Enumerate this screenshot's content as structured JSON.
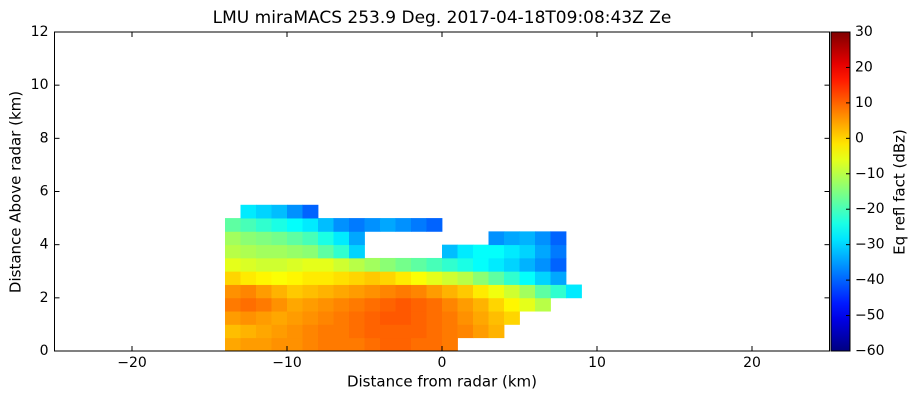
{
  "chart_data": {
    "type": "heatmap",
    "title": "LMU miraMACS 253.9 Deg. 2017-04-18T09:08:43Z  Ze",
    "xlabel": "Distance from radar (km)",
    "ylabel": "Distance Above radar  (km)",
    "xlim": [
      -25,
      25
    ],
    "ylim": [
      0,
      12
    ],
    "xticks": [
      {
        "value": -20,
        "label": "−20"
      },
      {
        "value": -10,
        "label": "−10"
      },
      0,
      10,
      20
    ],
    "yticks": [
      0,
      2,
      4,
      6,
      8,
      10,
      12
    ],
    "colormap": "jet",
    "x": [
      -13.5,
      -12.5,
      -11.5,
      -10.5,
      -9.5,
      -8.5,
      -7.5,
      -6.5,
      -5.5,
      -4.5,
      -3.5,
      -2.5,
      -1.5,
      -0.5,
      0.5,
      1.5,
      2.5,
      3.5,
      4.5,
      5.5,
      6.5,
      7.5,
      8.5,
      9.5
    ],
    "y": [
      0.25,
      0.75,
      1.25,
      1.75,
      2.25,
      2.75,
      3.25,
      3.75,
      4.25,
      4.75,
      5.25
    ],
    "z": [
      [
        4,
        5,
        5,
        6,
        6,
        7,
        8,
        8,
        8,
        9,
        10,
        10,
        9,
        9,
        8,
        null,
        null,
        null,
        null,
        null,
        null,
        null,
        null,
        null
      ],
      [
        2,
        3,
        4,
        5,
        6,
        7,
        8,
        8,
        9,
        10,
        10,
        10,
        10,
        9,
        8,
        7,
        5,
        3,
        null,
        null,
        null,
        null,
        null,
        null
      ],
      [
        5,
        6,
        5,
        4,
        5,
        6,
        7,
        8,
        9,
        10,
        11,
        11,
        10,
        9,
        8,
        6,
        4,
        2,
        0,
        null,
        null,
        null,
        null,
        null
      ],
      [
        8,
        9,
        8,
        6,
        4,
        5,
        6,
        7,
        8,
        9,
        10,
        11,
        10,
        9,
        7,
        5,
        3,
        0,
        -3,
        -6,
        -10,
        null,
        null,
        null
      ],
      [
        6,
        7,
        5,
        3,
        1,
        2,
        3,
        4,
        5,
        6,
        7,
        8,
        7,
        5,
        3,
        1,
        -2,
        -5,
        -8,
        -12,
        -18,
        -22,
        -28,
        null
      ],
      [
        0,
        -2,
        -3,
        -4,
        -3,
        -2,
        -2,
        -1,
        0,
        1,
        0,
        -2,
        -4,
        -6,
        -8,
        -10,
        -14,
        -18,
        -22,
        -26,
        -30,
        -34,
        null,
        null
      ],
      [
        -6,
        -7,
        -8,
        -8,
        -7,
        -6,
        -6,
        -8,
        -10,
        -12,
        -14,
        -16,
        -18,
        -20,
        -22,
        -24,
        -26,
        -28,
        -30,
        -33,
        -36,
        -40,
        null,
        null
      ],
      [
        -10,
        -11,
        -12,
        -12,
        -13,
        -14,
        -18,
        -22,
        -30,
        null,
        null,
        null,
        null,
        null,
        -32,
        -28,
        -26,
        -26,
        -28,
        -30,
        -34,
        -38,
        null,
        null
      ],
      [
        -12,
        -14,
        -15,
        -16,
        -18,
        -20,
        -24,
        -28,
        -34,
        null,
        null,
        null,
        null,
        null,
        null,
        null,
        null,
        -36,
        -34,
        -33,
        -36,
        -40,
        null,
        null
      ],
      [
        -18,
        -20,
        -22,
        -24,
        -26,
        -28,
        -32,
        -36,
        -38,
        -36,
        -34,
        -36,
        -38,
        -40,
        null,
        null,
        null,
        null,
        null,
        null,
        null,
        null,
        null,
        null
      ],
      [
        null,
        -28,
        -30,
        -32,
        -36,
        -40,
        null,
        null,
        null,
        null,
        null,
        null,
        null,
        null,
        null,
        null,
        null,
        null,
        null,
        null,
        null,
        null,
        null,
        null
      ]
    ],
    "colorbar": {
      "label": "Eq refl fact (dBz)",
      "lim": [
        -60,
        30
      ],
      "ticks": [
        {
          "value": -60,
          "label": "−60"
        },
        {
          "value": -50,
          "label": "−50"
        },
        {
          "value": -40,
          "label": "−40"
        },
        {
          "value": -30,
          "label": "−30"
        },
        {
          "value": -20,
          "label": "−20"
        },
        {
          "value": -10,
          "label": "−10"
        },
        0,
        10,
        20,
        30
      ]
    }
  }
}
